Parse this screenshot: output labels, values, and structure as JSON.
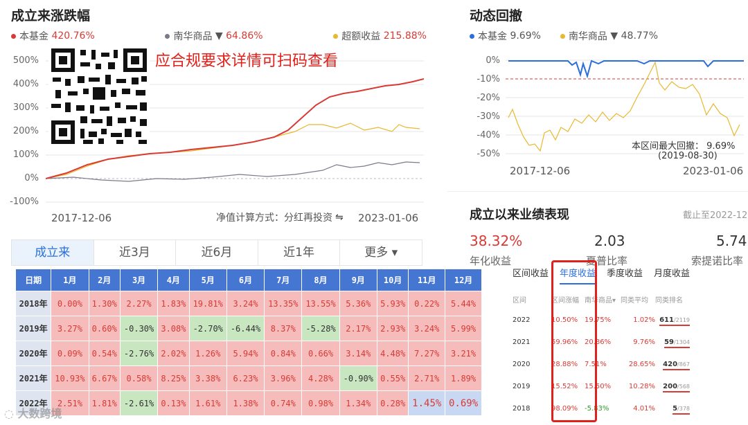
{
  "left_chart": {
    "title": "成立来涨跌幅",
    "legend": [
      {
        "name": "本基金",
        "value": "420.76%",
        "color": "#d83a34"
      },
      {
        "name": "南华商品",
        "value": "64.86%",
        "color": "#7a7a8a",
        "dropdown": "▼"
      },
      {
        "name": "超额收益",
        "value": "215.88%",
        "color": "#e8b830"
      }
    ],
    "y_ticks": [
      "500%",
      "400%",
      "300%",
      "200%",
      "100%",
      "0%",
      "-100%"
    ],
    "x_start": "2017-12-06",
    "x_end": "2023-01-06",
    "calc_method": "净值计算方式：分红再投资",
    "notice": "应合规要求详情可扫码查看"
  },
  "right_chart": {
    "title": "动态回撤",
    "legend": [
      {
        "name": "本基金",
        "value": "9.69%",
        "color": "#2a6fdb"
      },
      {
        "name": "南华商品",
        "value": "48.77%",
        "color": "#e8b830",
        "dropdown": "▼"
      }
    ],
    "y_ticks": [
      "0%",
      "-10%",
      "-20%",
      "-30%",
      "-40%",
      "-50%"
    ],
    "x_start": "2017-12-06",
    "x_end": "2023-01-06",
    "max_dd_label": "本区间最大回撤：",
    "max_dd_value": "9.69%",
    "max_dd_date": "(2019-08-30)"
  },
  "tabs": [
    "成立来",
    "近3月",
    "近6月",
    "近1年",
    "更多"
  ],
  "tabs_more_arrow": "▾",
  "calendar": {
    "headers": [
      "日期",
      "1月",
      "2月",
      "3月",
      "4月",
      "5月",
      "6月",
      "7月",
      "8月",
      "9月",
      "10月",
      "11月",
      "12月"
    ],
    "rows": [
      {
        "year": "2018年",
        "values": [
          "0.00%",
          "1.30%",
          "2.27%",
          "1.83%",
          "19.81%",
          "3.24%",
          "13.35%",
          "13.55%",
          "5.36%",
          "5.93%",
          "0.22%",
          "5.44%"
        ]
      },
      {
        "year": "2019年",
        "values": [
          "3.27%",
          "0.60%",
          "-0.30%",
          "3.08%",
          "-2.70%",
          "-6.44%",
          "8.37%",
          "-5.28%",
          "2.17%",
          "2.93%",
          "3.24%",
          "5.99%"
        ]
      },
      {
        "year": "2020年",
        "values": [
          "0.09%",
          "0.54%",
          "-2.76%",
          "2.02%",
          "1.26%",
          "5.94%",
          "0.84%",
          "0.66%",
          "3.14%",
          "4.48%",
          "7.27%",
          "3.21%"
        ]
      },
      {
        "year": "2021年",
        "values": [
          "10.93%",
          "6.67%",
          "0.58%",
          "8.25%",
          "3.38%",
          "6.23%",
          "3.96%",
          "4.28%",
          "-0.90%",
          "0.55%",
          "2.71%",
          "1.89%"
        ]
      },
      {
        "year": "2022年",
        "values": [
          "2.51%",
          "1.81%",
          "-2.61%",
          "0.13%",
          "1.61%",
          "1.38%",
          "0.74%",
          "0.98%",
          "1.34%",
          "0.28%",
          "1.45%",
          "0.69%"
        ]
      }
    ]
  },
  "performance": {
    "title": "成立以来业绩表现",
    "as_of": "截止至2022-12",
    "kpis": [
      {
        "value": "38.32%",
        "label": "年化收益",
        "color": "#d83a34"
      },
      {
        "value": "2.03",
        "label": "夏普比率",
        "color": "#333333"
      },
      {
        "value": "5.74",
        "label": "索提诺比率",
        "color": "#333333"
      }
    ],
    "subtabs": [
      "区间收益",
      "年度收益",
      "季度收益",
      "月度收益"
    ],
    "table_headers": [
      "区间",
      "区间涨幅",
      "南华商品",
      "同类平均",
      "同类排名"
    ],
    "dropdown_mark": "▾",
    "rows": [
      {
        "period": "2022",
        "return": "10.50%",
        "index": "19.75%",
        "avg": "1.02%",
        "rank": "611",
        "total": "/2119"
      },
      {
        "period": "2021",
        "return": "59.96%",
        "index": "20.86%",
        "avg": "9.76%",
        "rank": "59",
        "total": "/1304"
      },
      {
        "period": "2020",
        "return": "28.88%",
        "index": "7.51%",
        "avg": "28.65%",
        "rank": "420",
        "total": "/867"
      },
      {
        "period": "2019",
        "return": "15.52%",
        "index": "15.50%",
        "avg": "10.28%",
        "rank": "200",
        "total": "/568"
      },
      {
        "period": "2018",
        "return": "98.09%",
        "index": "-5.83%",
        "avg": "4.01%",
        "rank": "5",
        "total": "/378"
      }
    ]
  },
  "watermark": "大数跨境"
}
